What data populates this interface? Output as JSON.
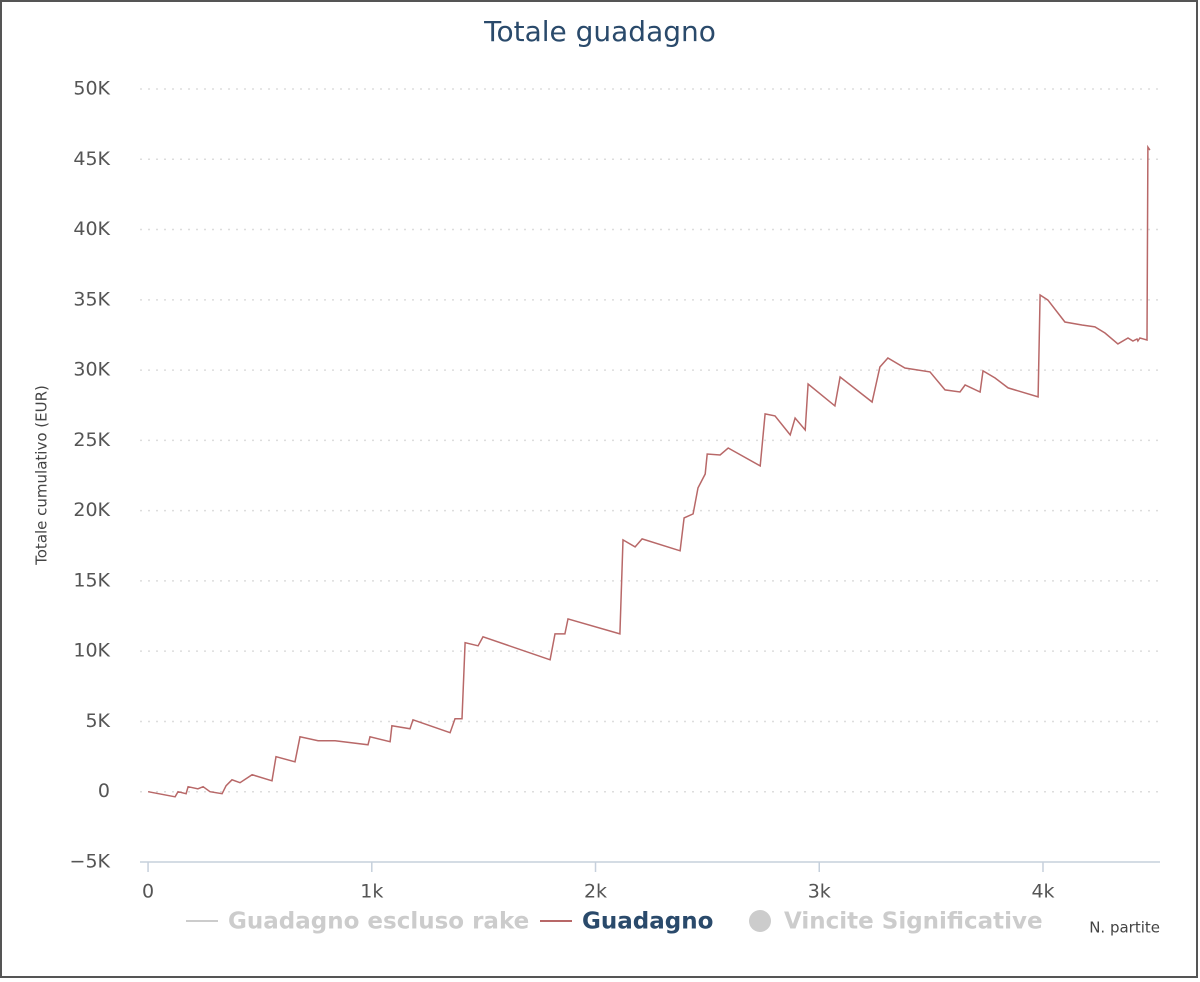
{
  "chart_data": {
    "type": "line",
    "title": "Totale guadagno",
    "y_label": "Totale cumulativo (EUR)",
    "x_label": "N. partite",
    "xlim": [
      -36,
      4523
    ],
    "ylim": [
      -5000,
      50000
    ],
    "xticks": [
      0,
      {
        "value": 1000,
        "label": "1k"
      },
      {
        "value": 2000,
        "label": "2k"
      },
      {
        "value": 3000,
        "label": "3k"
      },
      {
        "value": 4000,
        "label": "4k"
      }
    ],
    "yticks": [
      {
        "value": -5000,
        "label": "−5K"
      },
      0,
      {
        "value": 5000,
        "label": "5K"
      },
      {
        "value": 10000,
        "label": "10K"
      },
      {
        "value": 15000,
        "label": "15K"
      },
      {
        "value": 20000,
        "label": "20K"
      },
      {
        "value": 25000,
        "label": "25K"
      },
      {
        "value": 30000,
        "label": "30K"
      },
      {
        "value": 35000,
        "label": "35K"
      },
      {
        "value": 40000,
        "label": "40K"
      },
      {
        "value": 45000,
        "label": "45K"
      },
      {
        "value": 50000,
        "label": "50K"
      }
    ],
    "grid": true,
    "x": [
      0,
      121,
      134,
      170,
      179,
      223,
      246,
      277,
      331,
      349,
      375,
      411,
      465,
      554,
      572,
      657,
      679,
      760,
      836,
      983,
      992,
      1082,
      1090,
      1171,
      1184,
      1350,
      1372,
      1403,
      1417,
      1475,
      1497,
      1797,
      1819,
      1863,
      1877,
      2109,
      2123,
      2177,
      2208,
      2378,
      2396,
      2436,
      2458,
      2490,
      2499,
      2557,
      2593,
      2736,
      2758,
      2802,
      2870,
      2892,
      2937,
      2950,
      3070,
      3093,
      3236,
      3271,
      3307,
      3383,
      3495,
      3562,
      3629,
      3652,
      3719,
      3732,
      3786,
      3844,
      3978,
      3987,
      4022,
      4098,
      4174,
      4232,
      4277,
      4335,
      4380,
      4402,
      4420,
      4424,
      4433,
      4465,
      4469,
      4478
    ],
    "series": [
      {
        "name": "Guadagno escluso rake",
        "color": "#cccccc",
        "visible": false
      },
      {
        "name": "Guadagno",
        "color": "#b86868",
        "visible": true,
        "values": [
          0,
          -360,
          0,
          -140,
          360,
          210,
          360,
          0,
          -140,
          430,
          850,
          640,
          1210,
          780,
          2490,
          2130,
          3910,
          3630,
          3630,
          3340,
          3910,
          3560,
          4690,
          4480,
          5120,
          4200,
          5190,
          5190,
          10600,
          10380,
          11020,
          9390,
          11230,
          11230,
          12300,
          11230,
          17920,
          17420,
          17990,
          17140,
          19480,
          19770,
          21620,
          22610,
          24030,
          23960,
          24460,
          23180,
          26880,
          26740,
          25390,
          26590,
          25740,
          29010,
          27450,
          29510,
          27730,
          30220,
          30860,
          30150,
          29870,
          28590,
          28440,
          28940,
          28440,
          29940,
          29440,
          28730,
          28090,
          35340,
          34980,
          33420,
          33210,
          33070,
          32640,
          31860,
          32280,
          32070,
          32210,
          32070,
          32280,
          32140,
          45860,
          45650
        ]
      },
      {
        "name": "Vincite Significative",
        "color": "#cccccc",
        "visible": false,
        "marker": "circle"
      }
    ]
  }
}
